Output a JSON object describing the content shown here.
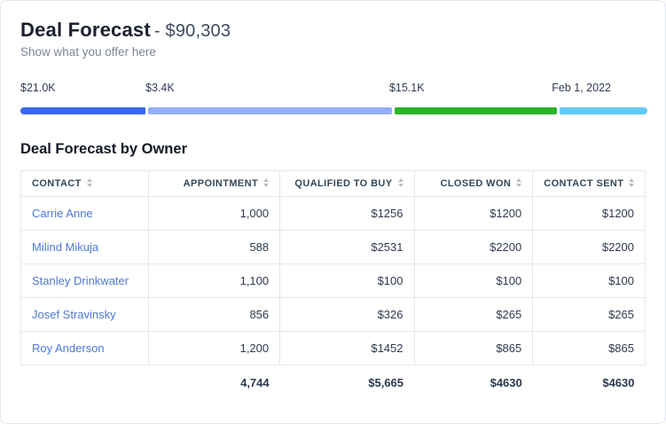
{
  "header": {
    "title": "Deal Forecast",
    "amount": "- $90,303",
    "subtitle": "Show what you offer here"
  },
  "progress": {
    "segments": [
      {
        "label": "$21.0K",
        "color": "#3a68ef",
        "percent": 20
      },
      {
        "label": "$3.4K",
        "color": "#93aff4",
        "percent": 39
      },
      {
        "label": "$15.1K",
        "color": "#2db32b",
        "percent": 26
      },
      {
        "label": "Feb 1, 2022",
        "color": "#63c8f5",
        "percent": 14
      }
    ]
  },
  "table": {
    "title": "Deal Forecast by Owner",
    "columns": [
      "CONTACT",
      "APPOINTMENT",
      "QUALIFIED TO BUY",
      "CLOSED WON",
      "CONTACT SENT"
    ],
    "rows": [
      {
        "contact": "Carrie Anne",
        "values": [
          "1,000",
          "$1256",
          "$1200",
          "$1200"
        ]
      },
      {
        "contact": "Milind Mikuja",
        "values": [
          "588",
          "$2531",
          "$2200",
          "$2200"
        ]
      },
      {
        "contact": "Stanley Drinkwater",
        "values": [
          "1,100",
          "$100",
          "$100",
          "$100"
        ]
      },
      {
        "contact": "Josef Stravinsky",
        "values": [
          "856",
          "$326",
          "$265",
          "$265"
        ]
      },
      {
        "contact": "Roy Anderson",
        "values": [
          "1,200",
          "$1452",
          "$865",
          "$865"
        ]
      }
    ],
    "totals": [
      "",
      "4,744",
      "$5,665",
      "$4630",
      "$4630"
    ]
  }
}
